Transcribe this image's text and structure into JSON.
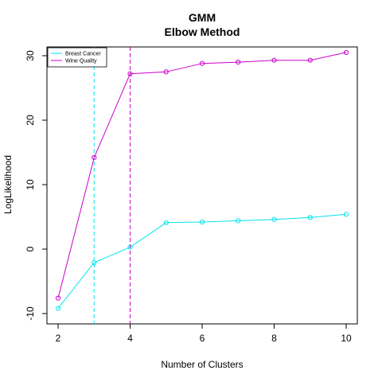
{
  "chart_data": {
    "type": "line",
    "title": "GMM",
    "subtitle": "Elbow Method",
    "xlabel": "Number of Clusters",
    "ylabel": "LogLikelihood",
    "xlim": [
      2,
      10
    ],
    "ylim": [
      -10,
      30
    ],
    "xticks": [
      "2",
      "4",
      "6",
      "8",
      "10"
    ],
    "yticks": [
      "-10",
      "0",
      "10",
      "20",
      "30"
    ],
    "x": [
      2,
      3,
      4,
      5,
      6,
      7,
      8,
      9,
      10
    ],
    "series": [
      {
        "name": "Breast Cancer",
        "color": "#00e5ee",
        "values": [
          -9.2,
          -2.1,
          0.3,
          4.1,
          4.2,
          4.4,
          4.6,
          4.9,
          5.4
        ],
        "elbow": 3
      },
      {
        "name": "Wine Quality",
        "color": "#cc00cc",
        "values": [
          -7.6,
          14.2,
          27.2,
          27.5,
          28.8,
          29.0,
          29.3,
          29.3,
          30.5
        ],
        "elbow": 4
      }
    ],
    "legend": "top-left",
    "grid": false
  }
}
